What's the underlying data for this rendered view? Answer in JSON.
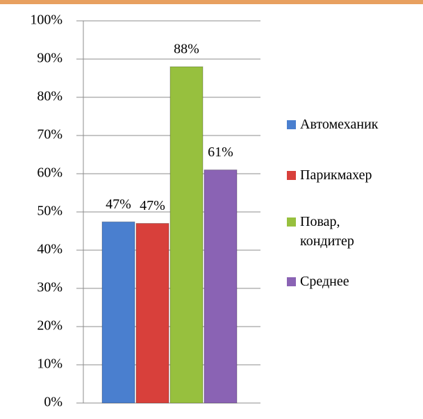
{
  "chart_data": {
    "type": "bar",
    "categories": [
      null
    ],
    "series": [
      {
        "name": "Автомеханик",
        "color": "#4a7fcf",
        "values": [
          47.4
        ],
        "value_labels": [
          "47%"
        ]
      },
      {
        "name": "Парикмахер",
        "color": "#d8403b",
        "values": [
          47
        ],
        "value_labels": [
          "47%"
        ]
      },
      {
        "name": "Повар, кондитер",
        "color": "#97c03e",
        "values": [
          88
        ],
        "value_labels": [
          "88%"
        ]
      },
      {
        "name": "Среднее",
        "color": "#8a63b4",
        "values": [
          61
        ],
        "value_labels": [
          "61%"
        ]
      }
    ],
    "ylim": [
      0,
      100
    ],
    "yticks": [
      {
        "value": 0,
        "label": "0%"
      },
      {
        "value": 10,
        "label": "10%"
      },
      {
        "value": 20,
        "label": "20%"
      },
      {
        "value": 30,
        "label": "30%"
      },
      {
        "value": 40,
        "label": "40%"
      },
      {
        "value": 50,
        "label": "50%"
      },
      {
        "value": 60,
        "label": "60%"
      },
      {
        "value": 70,
        "label": "70%"
      },
      {
        "value": 80,
        "label": "80%"
      },
      {
        "value": 90,
        "label": "90%"
      },
      {
        "value": 100,
        "label": "100%"
      }
    ],
    "grid": true,
    "legend": "right"
  }
}
